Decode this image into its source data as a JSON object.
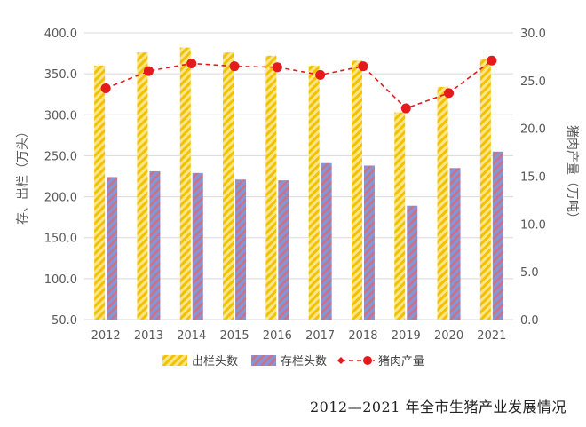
{
  "chart_data": {
    "type": "bar",
    "categories": [
      "2012",
      "2013",
      "2014",
      "2015",
      "2016",
      "2017",
      "2018",
      "2019",
      "2020",
      "2021"
    ],
    "series": [
      {
        "name": "出栏头数",
        "kind": "bar",
        "axis": "left",
        "values": [
          360,
          376,
          382,
          376,
          372,
          360,
          366,
          303,
          334,
          368
        ],
        "color": "#f2c200"
      },
      {
        "name": "存栏头数",
        "kind": "bar",
        "axis": "left",
        "values": [
          224,
          231,
          229,
          221,
          220,
          241,
          238,
          189,
          235,
          255
        ],
        "color": "#8496d8"
      },
      {
        "name": "猪肉产量",
        "kind": "line",
        "axis": "right",
        "values": [
          24.2,
          26.0,
          26.8,
          26.5,
          26.4,
          25.6,
          26.5,
          22.1,
          23.7,
          27.1
        ],
        "color": "#e41a1c"
      }
    ],
    "ylabel": "存、出栏（万头）",
    "y2label": "猪肉产量（万吨）",
    "ylim": [
      50,
      400
    ],
    "y2lim": [
      0,
      30
    ],
    "yticks": [
      "50.0",
      "100.0",
      "150.0",
      "200.0",
      "250.0",
      "300.0",
      "350.0",
      "400.0"
    ],
    "y2ticks": [
      "0.0",
      "5.0",
      "10.0",
      "15.0",
      "20.0",
      "25.0",
      "30.0"
    ],
    "grid": true,
    "legend": "bottom"
  },
  "caption": "2012—2021 年全市生猪产业发展情况"
}
